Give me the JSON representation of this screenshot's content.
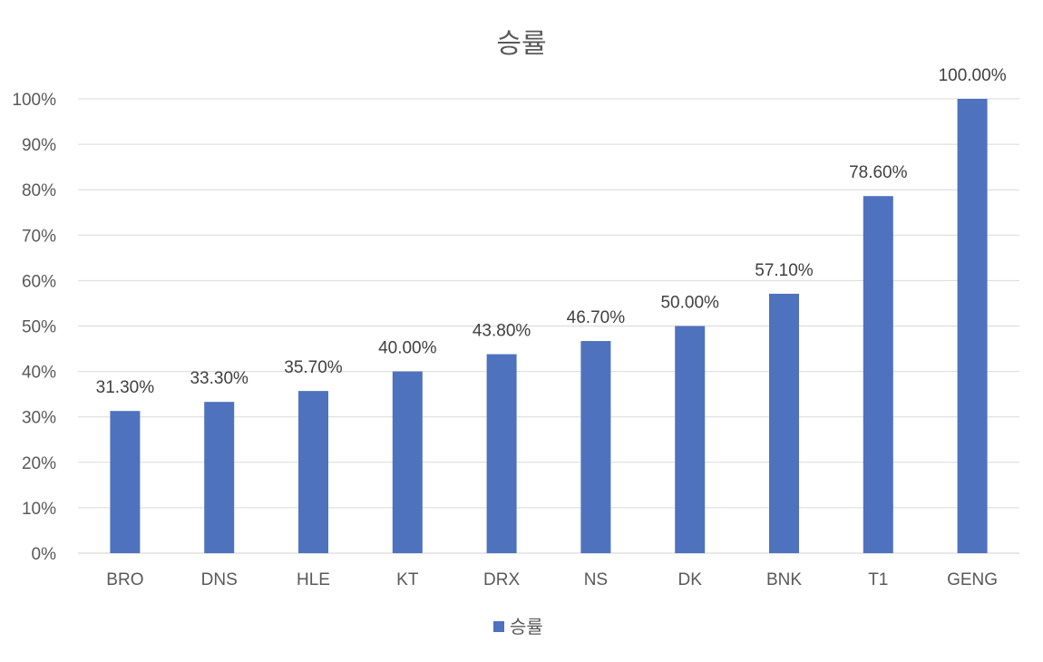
{
  "chart_data": {
    "type": "bar",
    "title": "승률",
    "xlabel": "",
    "ylabel": "",
    "categories": [
      "BRO",
      "DNS",
      "HLE",
      "KT",
      "DRX",
      "NS",
      "DK",
      "BNK",
      "T1",
      "GENG"
    ],
    "series": [
      {
        "name": "승률",
        "values": [
          31.3,
          33.3,
          35.7,
          40.0,
          43.8,
          46.7,
          50.0,
          57.1,
          78.6,
          100.0
        ],
        "data_labels": [
          "31.30%",
          "33.30%",
          "35.70%",
          "40.00%",
          "43.80%",
          "46.70%",
          "50.00%",
          "57.10%",
          "78.60%",
          "100.00%"
        ],
        "color": "#4f72be"
      }
    ],
    "ylim": [
      0,
      100
    ],
    "yticks": [
      0,
      10,
      20,
      30,
      40,
      50,
      60,
      70,
      80,
      90,
      100
    ],
    "ytick_labels": [
      "0%",
      "10%",
      "20%",
      "30%",
      "40%",
      "50%",
      "60%",
      "70%",
      "80%",
      "90%",
      "100%"
    ],
    "grid": true,
    "legend": "bottom"
  }
}
